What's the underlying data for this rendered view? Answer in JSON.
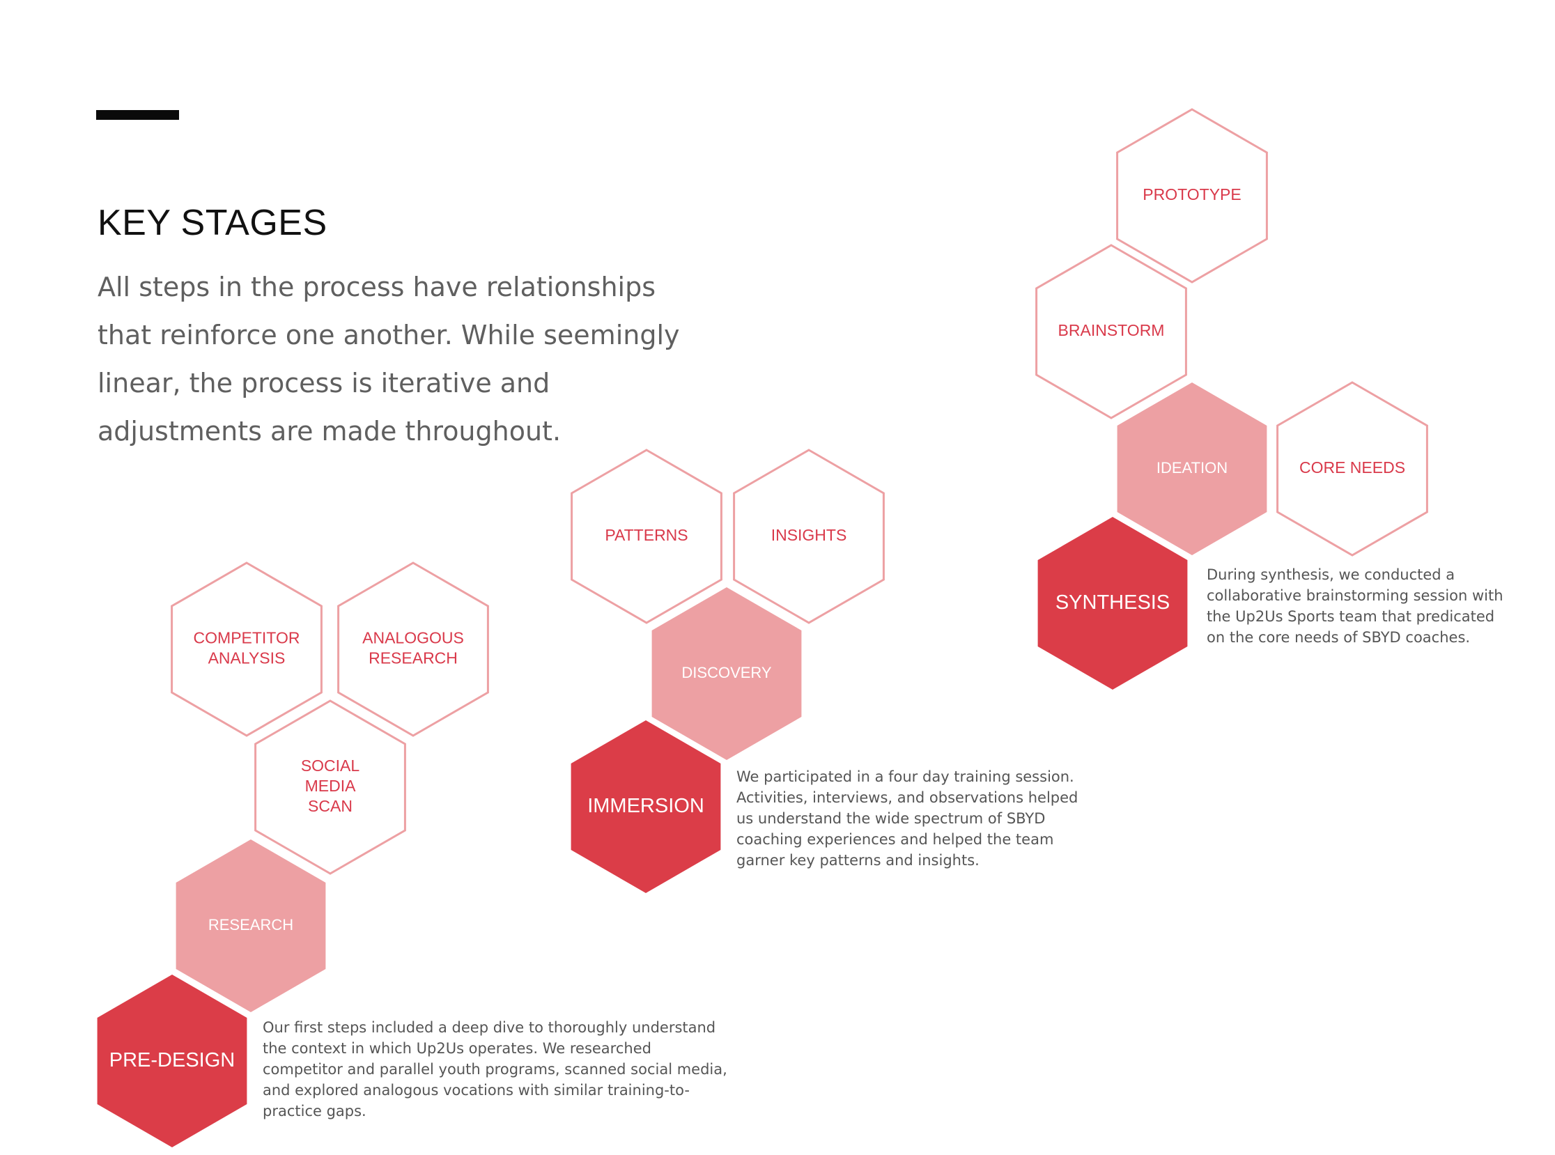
{
  "header": {
    "title": "KEY STAGES",
    "intro": "All steps in the process have relationships that reinforce one another. While seemingly linear, the process is iterative and adjustments are made throughout."
  },
  "colors": {
    "stage": "#db3d48",
    "phase": "#eda0a3",
    "outline": "#eda0a3",
    "outline_text": "#d9394a",
    "stage_text": "#ffffff"
  },
  "stages": [
    {
      "name": "PRE-DESIGN",
      "phase": "RESEARCH",
      "activities": [
        "COMPETITOR ANALYSIS",
        "ANALOGOUS RESEARCH",
        "SOCIAL MEDIA SCAN"
      ],
      "description": "Our first steps included a deep dive to thoroughly understand the context in which Up2Us operates. We researched competitor and parallel youth programs, scanned social media, and explored analogous vocations with similar training-to-practice gaps."
    },
    {
      "name": "IMMERSION",
      "phase": "DISCOVERY",
      "activities": [
        "PATTERNS",
        "INSIGHTS"
      ],
      "description": "We participated in a four day training session. Activities, interviews, and observations helped us understand the wide spectrum of SBYD coaching experiences and helped the team garner key patterns and insights."
    },
    {
      "name": "SYNTHESIS",
      "phase": "IDEATION",
      "activities": [
        "CORE NEEDS",
        "BRAINSTORM",
        "PROTOTYPE"
      ],
      "description": "During synthesis, we conducted a collaborative brainstorming session with the Up2Us Sports team that predicated on the core needs of SBYD coaches."
    }
  ]
}
